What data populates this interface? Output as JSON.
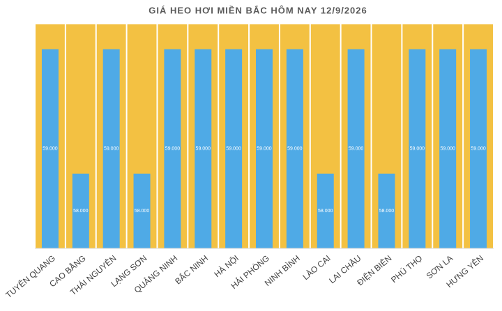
{
  "chart_data": {
    "type": "bar",
    "title": "GIÁ HEO HƠI MIỀN BẮC HÔM NAY 12/9/2026",
    "categories": [
      "TUYÊN QUANG",
      "CAO BẰNG",
      "THÁI NGUYÊN",
      "LẠNG SƠN",
      "QUẢNG NINH",
      "BẮC NINH",
      "HÀ NỘI",
      "HẢI PHÒNG",
      "NINH BÌNH",
      "LÀO CAI",
      "LAI CHÂU",
      "ĐIỆN BIÊN",
      "PHÚ THỌ",
      "SƠN LA",
      "HƯNG YÊN"
    ],
    "values": [
      59000,
      58000,
      59000,
      58000,
      59000,
      59000,
      59000,
      59000,
      59000,
      58000,
      59000,
      58000,
      59000,
      59000,
      59000
    ],
    "value_labels": [
      "59.000",
      "58.000",
      "59.000",
      "58.000",
      "59.000",
      "59.000",
      "59.000",
      "59.000",
      "59.000",
      "58.000",
      "59.000",
      "58.000",
      "59.000",
      "59.000",
      "59.000"
    ],
    "color": "#4faae6",
    "ylim": [
      57400,
      59200
    ]
  }
}
